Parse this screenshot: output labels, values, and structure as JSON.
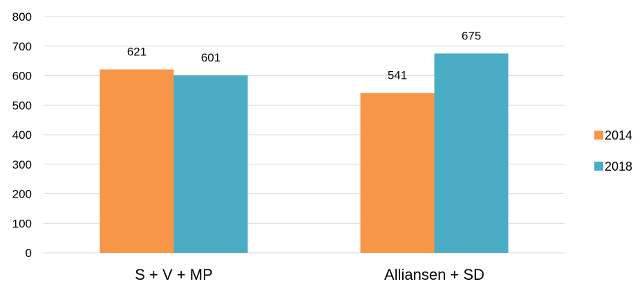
{
  "chart_data": {
    "type": "bar",
    "categories": [
      "S + V + MP",
      "Alliansen + SD"
    ],
    "series": [
      {
        "name": "2014",
        "values": [
          621,
          541
        ],
        "color": "#F79646"
      },
      {
        "name": "2018",
        "values": [
          601,
          675
        ],
        "color": "#4BACC6"
      }
    ],
    "yticks": [
      "0",
      "100",
      "200",
      "300",
      "400",
      "500",
      "600",
      "700",
      "800"
    ],
    "ylim": [
      0,
      800
    ],
    "grid": true,
    "legend_position": "right",
    "data_labels": true
  }
}
